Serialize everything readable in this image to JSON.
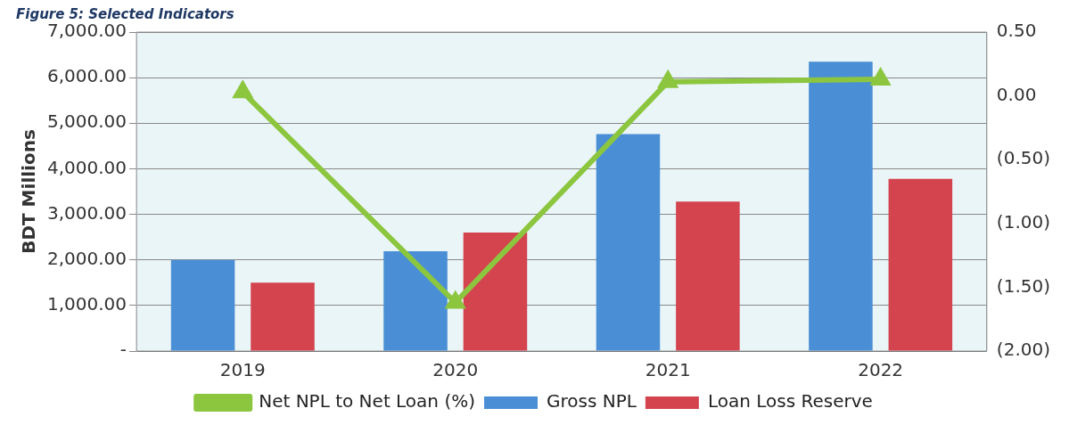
{
  "chart_data": {
    "type": "bar",
    "title": "Figure 5: Selected Indicators",
    "categories": [
      "2019",
      "2020",
      "2021",
      "2022"
    ],
    "ylabel": "BDT Millions",
    "series": [
      {
        "name": "Gross NPL",
        "color": "#4a8fd6",
        "values": [
          2000,
          2190,
          4760,
          6350
        ]
      },
      {
        "name": "Loan Loss Reserve",
        "color": "#d4444f",
        "values": [
          1500,
          2600,
          3280,
          3780
        ]
      },
      {
        "name": "Net NPL to Net Loan (%)",
        "type": "line",
        "axis": "y2",
        "color": "#8cc63f",
        "values": [
          0.03,
          -1.62,
          0.11,
          0.13
        ]
      }
    ],
    "ylim": [
      0,
      7000
    ],
    "yticks": [
      {
        "value": 0,
        "label": "-"
      },
      {
        "value": 1000,
        "label": "1,000.00"
      },
      {
        "value": 2000,
        "label": "2,000.00"
      },
      {
        "value": 3000,
        "label": "3,000.00"
      },
      {
        "value": 4000,
        "label": "4,000.00"
      },
      {
        "value": 5000,
        "label": "5,000.00"
      },
      {
        "value": 6000,
        "label": "6,000.00"
      },
      {
        "value": 7000,
        "label": "7,000.00"
      }
    ],
    "y2lim": [
      -2,
      0.5
    ],
    "y2ticks": [
      {
        "value": -2,
        "label": "(2.00)"
      },
      {
        "value": -1.5,
        "label": "(1.50)"
      },
      {
        "value": -1,
        "label": "(1.00)"
      },
      {
        "value": -0.5,
        "label": "(0.50)"
      },
      {
        "value": 0,
        "label": "0.00"
      },
      {
        "value": 0.5,
        "label": "0.50"
      }
    ],
    "grid": "y",
    "legend": "bottom",
    "marker": "triangle",
    "line_style": "solid"
  }
}
